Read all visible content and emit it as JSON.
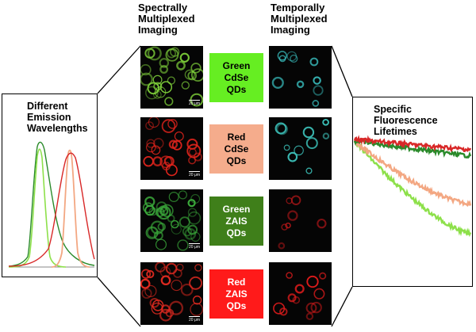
{
  "headings": {
    "spectral": "Spectrally\nMultiplexed\nImaging",
    "temporal": "Temporally\nMultiplexed\nImaging"
  },
  "left_panel": {
    "title": "Different\nEmission\nWavelengths"
  },
  "right_panel": {
    "title": "Specific\nFluorescence\nLifetimes"
  },
  "scale_label": "20 μm",
  "rows": [
    {
      "label": "Green\nCdSe\nQDs",
      "bg": "#66ee22",
      "fg": "#000000",
      "spectral_color": "#7fd23a",
      "temporal_color": "#3cc8c8"
    },
    {
      "label": "Red\nCdSe\nQDs",
      "bg": "#f5ac8c",
      "fg": "#000000",
      "spectral_color": "#e0241c",
      "temporal_color": "#3cc0b8"
    },
    {
      "label": "Green\nZAIS\nQDs",
      "bg": "#3f7f1a",
      "fg": "#ffffff",
      "spectral_color": "#3aa83a",
      "temporal_color": "#c0181a"
    },
    {
      "label": "Red\nZAIS\nQDs",
      "bg": "#ff1a1a",
      "fg": "#ffffff",
      "spectral_color": "#e02a20",
      "temporal_color": "#e01c1c"
    }
  ],
  "colors": {
    "green_cdse": "#66ee22",
    "red_cdse": "#f5ac8c",
    "green_zais": "#3f7f1a",
    "red_zais": "#ff1a1a",
    "emission_green_cdse": "#8de04a",
    "emission_peach": "#f3a782",
    "emission_dark_green": "#2a8a2a",
    "emission_red": "#d82828"
  }
}
